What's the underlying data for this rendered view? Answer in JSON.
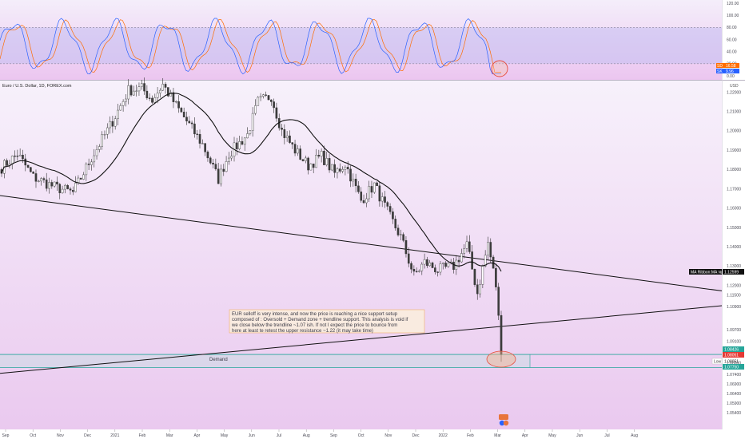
{
  "chart_data": [
    {
      "type": "line",
      "title": "",
      "y_ticks": [
        "120.00",
        "100.00",
        "80.00",
        "60.00",
        "40.00",
        "20.00",
        "0.00"
      ],
      "ylim": [
        0,
        120
      ],
      "bands": {
        "overbought": 80,
        "oversold": 20
      },
      "series": [
        {
          "name": "SD",
          "last_value": "16.58",
          "color": "#ff6d00"
        },
        {
          "name": "SK",
          "last_value": "9.96",
          "color": "#2962ff"
        }
      ]
    },
    {
      "type": "candlestick",
      "title": "Euro / U.S. Dollar, 1D, FOREX.com",
      "currency": "USD",
      "ylim": [
        1.0455,
        1.226
      ],
      "y_ticks": [
        "1.22000",
        "1.21000",
        "1.20000",
        "1.19000",
        "1.18000",
        "1.17000",
        "1.16000",
        "1.15000",
        "1.14000",
        "1.13000",
        "1.12000",
        "1.11500",
        "1.10900",
        "1.09700",
        "1.09100",
        "1.08000",
        "1.07400",
        "1.06900",
        "1.06400",
        "1.05900",
        "1.05400"
      ],
      "x_ticks": [
        "Sep",
        "Oct",
        "Nov",
        "Dec",
        "2021",
        "Feb",
        "Mar",
        "Apr",
        "May",
        "Jun",
        "Jul",
        "Aug",
        "Sep",
        "Oct",
        "Nov",
        "Dec",
        "2022",
        "Feb",
        "Mar",
        "Apr",
        "May",
        "Jun",
        "Jul",
        "Aug"
      ],
      "moving_average": {
        "name": "MA Ribbon:MA №1",
        "last_value": "1.12599"
      },
      "price_labels": {
        "last": "1.08426",
        "current": "1.08051",
        "low_tag": "Low",
        "low": "1.08051",
        "demand_low": "1.07750"
      },
      "zones": [
        {
          "label": "Demand",
          "from": 1.0775,
          "to": 1.0843
        }
      ],
      "trendlines": [
        {
          "from": {
            "x": "Sep 2020",
            "y": 1.1665
          },
          "to": {
            "x": "Aug 2022",
            "y": 1.1172
          }
        },
        {
          "from": {
            "x": "Sep 2020",
            "y": 1.0745
          },
          "to": {
            "x": "Aug 2022",
            "y": 1.1095
          }
        }
      ],
      "annotation": [
        "EUR selloff is very intense, and now the price is reaching a nice support setup",
        "composed of : Oversold + Demand zone + trendline support. This analysis is void if",
        "we close below the trendline ~1.07 ish. If not I expect the price to bounce from",
        "here at least te retest the upper resistance ~1.22 (it may take time)"
      ]
    }
  ],
  "colors": {
    "up": "#ffffff",
    "down": "#3c3c3c",
    "ma": "#111111",
    "demand": "#26a69a",
    "highlight": "#e74c3c"
  }
}
